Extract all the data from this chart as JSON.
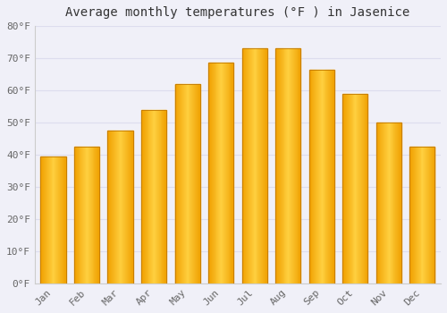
{
  "title": "Average monthly temperatures (°F ) in Jasenice",
  "months": [
    "Jan",
    "Feb",
    "Mar",
    "Apr",
    "May",
    "Jun",
    "Jul",
    "Aug",
    "Sep",
    "Oct",
    "Nov",
    "Dec"
  ],
  "values": [
    39.5,
    42.5,
    47.5,
    54.0,
    62.0,
    68.5,
    73.0,
    73.0,
    66.5,
    59.0,
    50.0,
    42.5
  ],
  "bar_color_left": "#E8960A",
  "bar_color_center": "#FFD040",
  "bar_color_right": "#E8960A",
  "bar_edge_color": "#C87800",
  "background_color": "#F0F0F8",
  "ylim": [
    0,
    80
  ],
  "yticks": [
    0,
    10,
    20,
    30,
    40,
    50,
    60,
    70,
    80
  ],
  "ytick_labels": [
    "0°F",
    "10°F",
    "20°F",
    "30°F",
    "40°F",
    "50°F",
    "60°F",
    "70°F",
    "80°F"
  ],
  "title_fontsize": 10,
  "tick_fontsize": 8,
  "grid_color": "#DDDDEE",
  "bar_width": 0.75
}
